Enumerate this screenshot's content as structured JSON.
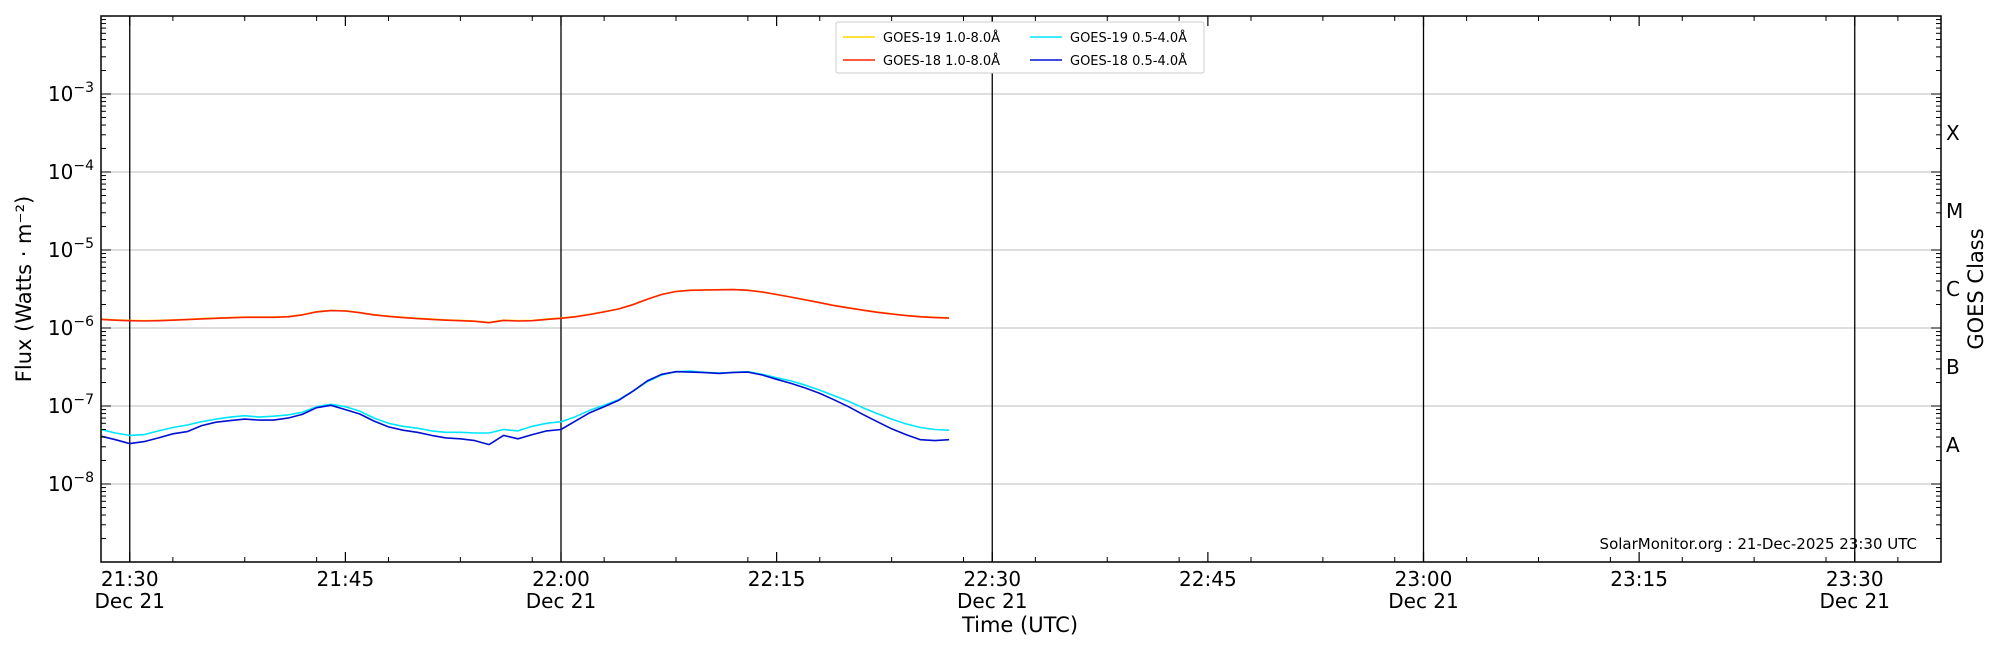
{
  "chart_data": {
    "type": "line",
    "xlabel": "Time (UTC)",
    "ylabel": "Flux (Watts · m⁻²)",
    "ylabel_right": "GOES Class",
    "y_scale": "log",
    "ylim": [
      1e-09,
      0.01
    ],
    "xlim": [
      "2025-12-21T21:28",
      "2025-12-21T23:36"
    ],
    "grid": "horizontal",
    "legend_position": "top-center",
    "watermark": "SolarMonitor.org : 21-Dec-2025 23:30 UTC",
    "y_tick_labels": [
      {
        "value": 1e-08,
        "base": "10",
        "exp": "−8"
      },
      {
        "value": 1e-07,
        "base": "10",
        "exp": "−7"
      },
      {
        "value": 1e-06,
        "base": "10",
        "exp": "−6"
      },
      {
        "value": 1e-05,
        "base": "10",
        "exp": "−5"
      },
      {
        "value": 0.0001,
        "base": "10",
        "exp": "−4"
      },
      {
        "value": 0.001,
        "base": "10",
        "exp": "−3"
      }
    ],
    "x_ticks": [
      {
        "time": "21:30",
        "label": "21:30",
        "date": "Dec 21"
      },
      {
        "time": "21:45",
        "label": "21:45",
        "date": ""
      },
      {
        "time": "22:00",
        "label": "22:00",
        "date": "Dec 21"
      },
      {
        "time": "22:15",
        "label": "22:15",
        "date": ""
      },
      {
        "time": "22:30",
        "label": "22:30",
        "date": "Dec 21"
      },
      {
        "time": "22:45",
        "label": "22:45",
        "date": ""
      },
      {
        "time": "23:00",
        "label": "23:00",
        "date": "Dec 21"
      },
      {
        "time": "23:15",
        "label": "23:15",
        "date": ""
      },
      {
        "time": "23:30",
        "label": "23:30",
        "date": "Dec 21"
      }
    ],
    "vertical_lines": [
      "21:30",
      "22:00",
      "22:30",
      "23:00",
      "23:30"
    ],
    "goes_classes": [
      {
        "label": "A",
        "value": 3.16e-08
      },
      {
        "label": "B",
        "value": 3.16e-07
      },
      {
        "label": "C",
        "value": 3.16e-06
      },
      {
        "label": "M",
        "value": 3.16e-05
      },
      {
        "label": "X",
        "value": 0.000316
      }
    ],
    "x": [
      "21:28",
      "21:29",
      "21:30",
      "21:31",
      "21:32",
      "21:33",
      "21:34",
      "21:35",
      "21:36",
      "21:37",
      "21:38",
      "21:39",
      "21:40",
      "21:41",
      "21:42",
      "21:43",
      "21:44",
      "21:45",
      "21:46",
      "21:47",
      "21:48",
      "21:49",
      "21:50",
      "21:51",
      "21:52",
      "21:53",
      "21:54",
      "21:55",
      "21:56",
      "21:57",
      "21:58",
      "21:59",
      "22:00",
      "22:01",
      "22:02",
      "22:03",
      "22:04",
      "22:05",
      "22:06",
      "22:07",
      "22:08",
      "22:09",
      "22:10",
      "22:11",
      "22:12",
      "22:13",
      "22:14",
      "22:15",
      "22:16",
      "22:17",
      "22:18",
      "22:19",
      "22:20",
      "22:21",
      "22:22",
      "22:23",
      "22:24",
      "22:25",
      "22:26",
      "22:27"
    ],
    "series": [
      {
        "name": "GOES-19 1.0-8.0Å",
        "color": "#ffd700",
        "values": [
          1.3e-06,
          1.27e-06,
          1.25e-06,
          1.24e-06,
          1.25e-06,
          1.27e-06,
          1.29e-06,
          1.32e-06,
          1.34e-06,
          1.36e-06,
          1.38e-06,
          1.38e-06,
          1.38e-06,
          1.4e-06,
          1.48e-06,
          1.62e-06,
          1.68e-06,
          1.66e-06,
          1.58e-06,
          1.48e-06,
          1.42e-06,
          1.37e-06,
          1.33e-06,
          1.3e-06,
          1.27e-06,
          1.25e-06,
          1.23e-06,
          1.18e-06,
          1.26e-06,
          1.24e-06,
          1.25e-06,
          1.3e-06,
          1.34e-06,
          1.4e-06,
          1.5e-06,
          1.62e-06,
          1.76e-06,
          2e-06,
          2.35e-06,
          2.7e-06,
          2.95e-06,
          3.05e-06,
          3.08e-06,
          3.1e-06,
          3.12e-06,
          3.05e-06,
          2.9e-06,
          2.7e-06,
          2.5e-06,
          2.3e-06,
          2.12e-06,
          1.95e-06,
          1.82e-06,
          1.7e-06,
          1.6e-06,
          1.52e-06,
          1.45e-06,
          1.4e-06,
          1.37e-06,
          1.35e-06
        ]
      },
      {
        "name": "GOES-18 1.0-8.0Å",
        "color": "#ff2200",
        "values": [
          1.29e-06,
          1.26e-06,
          1.24e-06,
          1.23e-06,
          1.24e-06,
          1.26e-06,
          1.28e-06,
          1.31e-06,
          1.33e-06,
          1.35e-06,
          1.37e-06,
          1.37e-06,
          1.37e-06,
          1.39e-06,
          1.47e-06,
          1.61e-06,
          1.67e-06,
          1.65e-06,
          1.57e-06,
          1.47e-06,
          1.41e-06,
          1.36e-06,
          1.32e-06,
          1.29e-06,
          1.26e-06,
          1.24e-06,
          1.22e-06,
          1.17e-06,
          1.25e-06,
          1.23e-06,
          1.24e-06,
          1.29e-06,
          1.33e-06,
          1.39e-06,
          1.49e-06,
          1.61e-06,
          1.75e-06,
          1.99e-06,
          2.34e-06,
          2.69e-06,
          2.94e-06,
          3.04e-06,
          3.07e-06,
          3.09e-06,
          3.11e-06,
          3.04e-06,
          2.89e-06,
          2.69e-06,
          2.49e-06,
          2.29e-06,
          2.11e-06,
          1.94e-06,
          1.81e-06,
          1.69e-06,
          1.59e-06,
          1.51e-06,
          1.44e-06,
          1.39e-06,
          1.36e-06,
          1.34e-06
        ]
      },
      {
        "name": "GOES-19 0.5-4.0Å",
        "color": "#00e5ff",
        "values": [
          5e-08,
          4.5e-08,
          4.2e-08,
          4.3e-08,
          4.8e-08,
          5.3e-08,
          5.7e-08,
          6.3e-08,
          6.8e-08,
          7.2e-08,
          7.5e-08,
          7.2e-08,
          7.4e-08,
          7.7e-08,
          8.3e-08,
          9.8e-08,
          1.05e-07,
          9.8e-08,
          8.6e-08,
          7e-08,
          6e-08,
          5.5e-08,
          5.2e-08,
          4.8e-08,
          4.6e-08,
          4.6e-08,
          4.5e-08,
          4.5e-08,
          5e-08,
          4.8e-08,
          5.5e-08,
          6e-08,
          6.3e-08,
          7.3e-08,
          8.8e-08,
          1.02e-07,
          1.2e-07,
          1.55e-07,
          2.05e-07,
          2.5e-07,
          2.75e-07,
          2.8e-07,
          2.7e-07,
          2.65e-07,
          2.7e-07,
          2.75e-07,
          2.55e-07,
          2.3e-07,
          2.1e-07,
          1.85e-07,
          1.6e-07,
          1.35e-07,
          1.15e-07,
          9.5e-08,
          8e-08,
          6.8e-08,
          5.9e-08,
          5.3e-08,
          5e-08,
          4.9e-08
        ]
      },
      {
        "name": "GOES-18 0.5-4.0Å",
        "color": "#0010d0",
        "values": [
          4.1e-08,
          3.7e-08,
          3.3e-08,
          3.5e-08,
          3.9e-08,
          4.4e-08,
          4.7e-08,
          5.6e-08,
          6.2e-08,
          6.5e-08,
          6.8e-08,
          6.6e-08,
          6.6e-08,
          7e-08,
          7.8e-08,
          9.5e-08,
          1.02e-07,
          9e-08,
          7.9e-08,
          6.4e-08,
          5.4e-08,
          4.9e-08,
          4.6e-08,
          4.2e-08,
          3.9e-08,
          3.8e-08,
          3.6e-08,
          3.2e-08,
          4.2e-08,
          3.8e-08,
          4.3e-08,
          4.8e-08,
          5e-08,
          6.4e-08,
          8.2e-08,
          9.8e-08,
          1.18e-07,
          1.55e-07,
          2.1e-07,
          2.55e-07,
          2.75e-07,
          2.72e-07,
          2.68e-07,
          2.62e-07,
          2.7e-07,
          2.72e-07,
          2.5e-07,
          2.2e-07,
          1.95e-07,
          1.7e-07,
          1.45e-07,
          1.2e-07,
          9.8e-08,
          7.8e-08,
          6.3e-08,
          5.1e-08,
          4.3e-08,
          3.7e-08,
          3.6e-08,
          3.7e-08
        ]
      }
    ]
  }
}
